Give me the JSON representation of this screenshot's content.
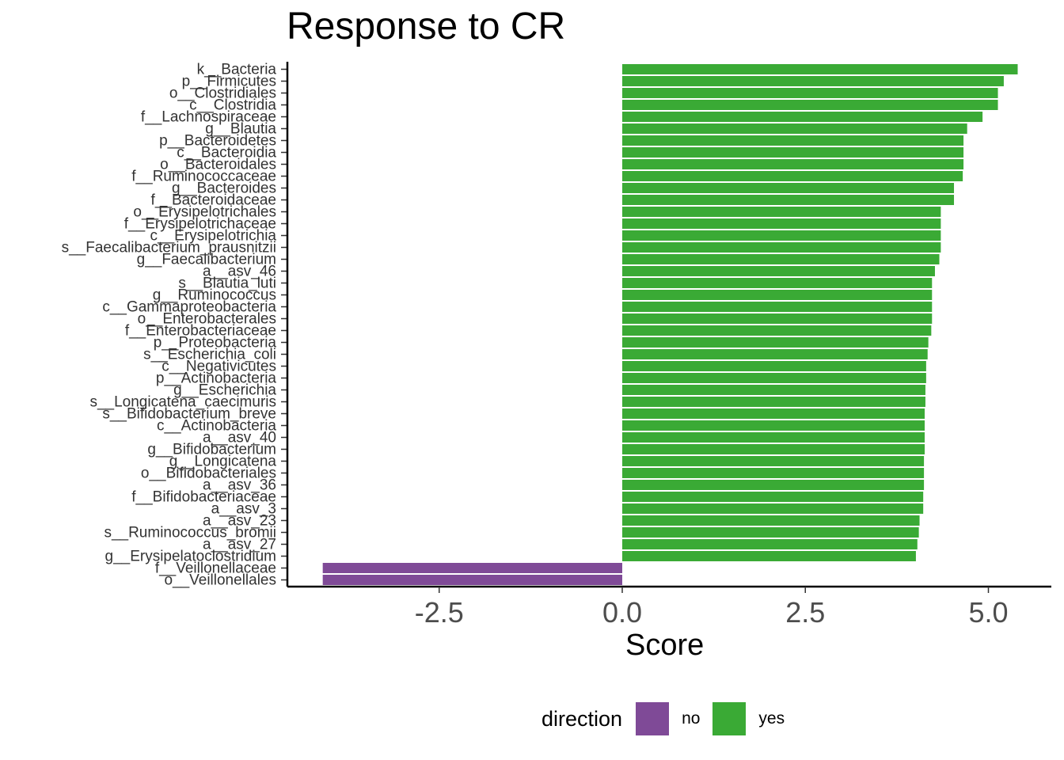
{
  "colors": {
    "no": "#7f4a97",
    "yes": "#3aaa35"
  },
  "legend": {
    "title": "direction",
    "items": [
      {
        "key": "no",
        "label": "no"
      },
      {
        "key": "yes",
        "label": "yes"
      }
    ]
  },
  "chart_data": {
    "type": "bar",
    "orientation": "horizontal",
    "title": "Response to CR",
    "xlabel": "Score",
    "ylabel": "",
    "xlim": [
      -4.55,
      5.85
    ],
    "xticks": [
      -2.5,
      0.0,
      2.5,
      5.0
    ],
    "xtick_labels": [
      "-2.5",
      "0.0",
      "2.5",
      "5.0"
    ],
    "grid": false,
    "legend_position": "bottom",
    "categories": [
      "k__Bacteria",
      "p__Firmicutes",
      "o__Clostridiales",
      "c__Clostridia",
      "f__Lachnospiraceae",
      "g__Blautia",
      "p__Bacteroidetes",
      "c__Bacteroidia",
      "o__Bacteroidales",
      "f__Ruminococcaceae",
      "g__Bacteroides",
      "f__Bacteroidaceae",
      "o__Erysipelotrichales",
      "f__Erysipelotrichaceae",
      "c__Erysipelotrichia",
      "s__Faecalibacterium_prausnitzii",
      "g__Faecalibacterium",
      "a__asv_46",
      "s__Blautia_luti",
      "g__Ruminococcus",
      "c__Gammaproteobacteria",
      "o__Enterobacterales",
      "f__Enterobacteriaceae",
      "p__Proteobacteria",
      "s__Escherichia_coli",
      "c__Negativicutes",
      "p__Actinobacteria",
      "g__Escherichia",
      "s__Longicatena_caecimuris",
      "s__Bifidobacterium_breve",
      "c__Actinobacteria",
      "a__asv_40",
      "g__Bifidobacterium",
      "g__Longicatena",
      "o__Bifidobacteriales",
      "a__asv_36",
      "f__Bifidobacteriaceae",
      "a__asv_3",
      "a__asv_23",
      "s__Ruminococcus_bromii",
      "a__asv_27",
      "g__Erysipelatoclostridium",
      "f__Veillonellaceae",
      "o__Veillonellales"
    ],
    "values": [
      5.4,
      5.21,
      5.13,
      5.13,
      4.92,
      4.71,
      4.66,
      4.66,
      4.66,
      4.65,
      4.53,
      4.53,
      4.35,
      4.35,
      4.35,
      4.35,
      4.33,
      4.27,
      4.23,
      4.23,
      4.23,
      4.23,
      4.22,
      4.18,
      4.17,
      4.15,
      4.15,
      4.14,
      4.14,
      4.13,
      4.13,
      4.13,
      4.13,
      4.12,
      4.12,
      4.12,
      4.11,
      4.11,
      4.06,
      4.05,
      4.03,
      4.01,
      -4.09,
      -4.09
    ],
    "direction": [
      "yes",
      "yes",
      "yes",
      "yes",
      "yes",
      "yes",
      "yes",
      "yes",
      "yes",
      "yes",
      "yes",
      "yes",
      "yes",
      "yes",
      "yes",
      "yes",
      "yes",
      "yes",
      "yes",
      "yes",
      "yes",
      "yes",
      "yes",
      "yes",
      "yes",
      "yes",
      "yes",
      "yes",
      "yes",
      "yes",
      "yes",
      "yes",
      "yes",
      "yes",
      "yes",
      "yes",
      "yes",
      "yes",
      "yes",
      "yes",
      "yes",
      "yes",
      "no",
      "no"
    ]
  }
}
